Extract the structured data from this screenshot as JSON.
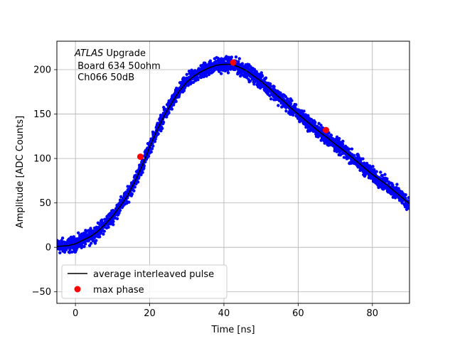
{
  "chart_data": {
    "type": "scatter",
    "title": "",
    "xlabel": "Time [ns]",
    "ylabel": "Amplitude [ADC Counts]",
    "xlim": [
      -5,
      90
    ],
    "ylim": [
      -63,
      232
    ],
    "xticks": [
      0,
      20,
      40,
      60,
      80
    ],
    "yticks": [
      -50,
      0,
      50,
      100,
      150,
      200
    ],
    "grid": true,
    "annotation": {
      "experiment": "ATLAS",
      "experiment_suffix": " Upgrade",
      "line2": " Board 634 50ohm",
      "line3": " Ch066 50dB"
    },
    "legend": {
      "placement": "lower-left",
      "entries": [
        {
          "label": "average interleaved pulse",
          "style": "line",
          "color": "#000000"
        },
        {
          "label": "max phase",
          "style": "marker",
          "color": "#ff0000"
        }
      ]
    },
    "series": [
      {
        "name": "average interleaved pulse",
        "kind": "line",
        "color": "#000000",
        "x": [
          -5,
          -2,
          0,
          2,
          4,
          6,
          8,
          10,
          12,
          14,
          16,
          18,
          20,
          22,
          24,
          26,
          28,
          30,
          32,
          34,
          36,
          38,
          40,
          42,
          44,
          46,
          48,
          50,
          52,
          54,
          56,
          58,
          60,
          62,
          64,
          66,
          68,
          70,
          72,
          74,
          76,
          78,
          80,
          82,
          84,
          86,
          88,
          90
        ],
        "y": [
          1,
          2,
          4,
          8,
          12,
          18,
          26,
          35,
          46,
          58,
          74,
          92,
          113,
          132,
          149,
          163,
          176,
          186,
          193,
          198,
          202,
          205,
          206,
          206,
          203,
          199,
          193,
          187,
          180,
          172,
          165,
          157,
          150,
          143,
          136,
          129,
          123,
          116,
          110,
          103,
          96,
          89,
          82,
          76,
          70,
          63,
          56,
          49
        ]
      },
      {
        "name": "max phase",
        "kind": "marker",
        "color": "#ff0000",
        "x": [
          17.5,
          42.5,
          67.5
        ],
        "y": [
          102,
          208,
          132
        ]
      },
      {
        "name": "",
        "kind": "scatter",
        "color": "#0000ff",
        "noise_amplitude": 8,
        "points": 2400
      }
    ]
  }
}
